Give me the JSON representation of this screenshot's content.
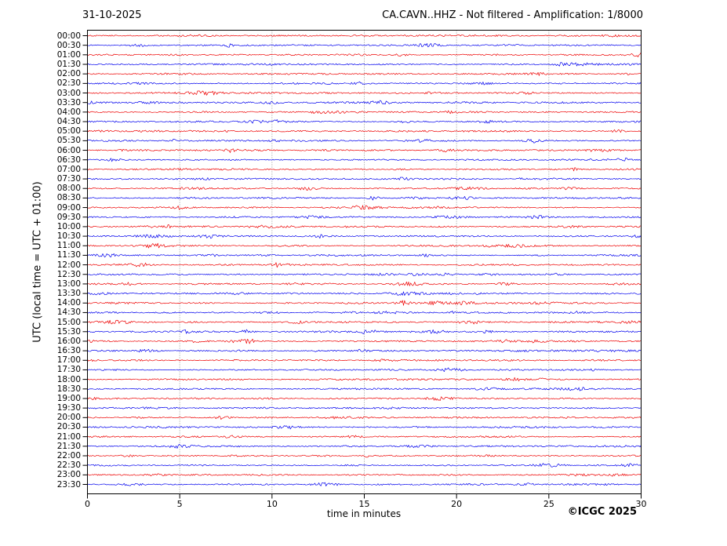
{
  "header": {
    "date": "31-10-2025",
    "title": "CA.CAVN..HHZ - Not filtered - Amplification: 1/8000"
  },
  "footer": {
    "copyright": "©ICGC 2025"
  },
  "chart_data": {
    "type": "line",
    "subtype": "helicorder-seismogram",
    "station": "CA.CAVN..HHZ",
    "filter": "Not filtered",
    "amplification": "1/8000",
    "date": "31-10-2025",
    "xlabel": "time in minutes",
    "ylabel": "UTC (local time = UTC + 01:00)",
    "xlim": [
      0,
      30
    ],
    "x_ticks": [
      0,
      5,
      10,
      15,
      20,
      25,
      30
    ],
    "minutes_per_row": 30,
    "grid": "vertical dotted gridlines at 5-minute intervals",
    "legend": "none",
    "waveform": "continuous low-amplitude background noise, no large events",
    "colors": {
      "red": "#ee0000",
      "blue": "#0000ee",
      "grid": "#8a8a8a",
      "axis": "#000000"
    },
    "rows": [
      {
        "label": "00:00",
        "color": "red"
      },
      {
        "label": "00:30",
        "color": "blue"
      },
      {
        "label": "01:00",
        "color": "red"
      },
      {
        "label": "01:30",
        "color": "blue"
      },
      {
        "label": "02:00",
        "color": "red"
      },
      {
        "label": "02:30",
        "color": "blue"
      },
      {
        "label": "03:00",
        "color": "red"
      },
      {
        "label": "03:30",
        "color": "blue"
      },
      {
        "label": "04:00",
        "color": "red"
      },
      {
        "label": "04:30",
        "color": "blue"
      },
      {
        "label": "05:00",
        "color": "red"
      },
      {
        "label": "05:30",
        "color": "blue"
      },
      {
        "label": "06:00",
        "color": "red"
      },
      {
        "label": "06:30",
        "color": "blue"
      },
      {
        "label": "07:00",
        "color": "red"
      },
      {
        "label": "07:30",
        "color": "blue"
      },
      {
        "label": "08:00",
        "color": "red"
      },
      {
        "label": "08:30",
        "color": "blue"
      },
      {
        "label": "09:00",
        "color": "red"
      },
      {
        "label": "09:30",
        "color": "blue"
      },
      {
        "label": "10:00",
        "color": "red"
      },
      {
        "label": "10:30",
        "color": "blue"
      },
      {
        "label": "11:00",
        "color": "red"
      },
      {
        "label": "11:30",
        "color": "blue"
      },
      {
        "label": "12:00",
        "color": "red"
      },
      {
        "label": "12:30",
        "color": "blue"
      },
      {
        "label": "13:00",
        "color": "red"
      },
      {
        "label": "13:30",
        "color": "blue"
      },
      {
        "label": "14:00",
        "color": "red"
      },
      {
        "label": "14:30",
        "color": "blue"
      },
      {
        "label": "15:00",
        "color": "red"
      },
      {
        "label": "15:30",
        "color": "blue"
      },
      {
        "label": "16:00",
        "color": "red"
      },
      {
        "label": "16:30",
        "color": "blue"
      },
      {
        "label": "17:00",
        "color": "red"
      },
      {
        "label": "17:30",
        "color": "blue"
      },
      {
        "label": "18:00",
        "color": "red"
      },
      {
        "label": "18:30",
        "color": "blue"
      },
      {
        "label": "19:00",
        "color": "red"
      },
      {
        "label": "19:30",
        "color": "blue"
      },
      {
        "label": "20:00",
        "color": "red"
      },
      {
        "label": "20:30",
        "color": "blue"
      },
      {
        "label": "21:00",
        "color": "red"
      },
      {
        "label": "21:30",
        "color": "blue"
      },
      {
        "label": "22:00",
        "color": "red"
      },
      {
        "label": "22:30",
        "color": "blue"
      },
      {
        "label": "23:00",
        "color": "red"
      },
      {
        "label": "23:30",
        "color": "blue"
      }
    ]
  }
}
